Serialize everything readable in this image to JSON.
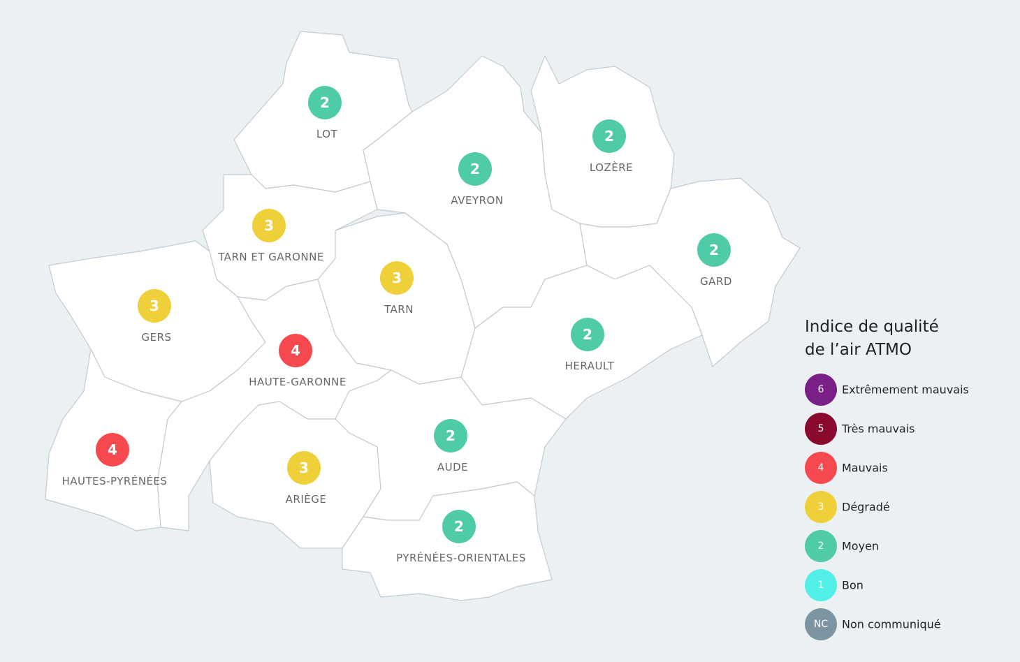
{
  "map": {
    "departments": [
      {
        "name": "LOT",
        "index": 2
      },
      {
        "name": "AVEYRON",
        "index": 2
      },
      {
        "name": "LOZÈRE",
        "index": 2
      },
      {
        "name": "GARD",
        "index": 2
      },
      {
        "name": "TARN ET GARONNE",
        "index": 3
      },
      {
        "name": "TARN",
        "index": 3
      },
      {
        "name": "GERS",
        "index": 3
      },
      {
        "name": "HERAULT",
        "index": 2
      },
      {
        "name": "HAUTE-GARONNE",
        "index": 4
      },
      {
        "name": "HAUTES-PYRÉNÉES",
        "index": 4
      },
      {
        "name": "AUDE",
        "index": 2
      },
      {
        "name": "ARIÈGE",
        "index": 3
      },
      {
        "name": "PYRÉNÉES-ORIENTALES",
        "index": 2
      }
    ]
  },
  "legend": {
    "title": "Indice de qualité de l’air ATMO",
    "items": [
      {
        "code": "6",
        "label": "Extrêmement mauvais",
        "color": "#7a1f86"
      },
      {
        "code": "5",
        "label": "Très mauvais",
        "color": "#8a0a2e"
      },
      {
        "code": "4",
        "label": "Mauvais",
        "color": "#f5484f"
      },
      {
        "code": "3",
        "label": "Dégradé",
        "color": "#efcf3a"
      },
      {
        "code": "2",
        "label": "Moyen",
        "color": "#4fcba7"
      },
      {
        "code": "1",
        "label": "Bon",
        "color": "#52efe6"
      },
      {
        "code": "NC",
        "label": "Non communiqué",
        "color": "#7d95a3"
      }
    ]
  }
}
